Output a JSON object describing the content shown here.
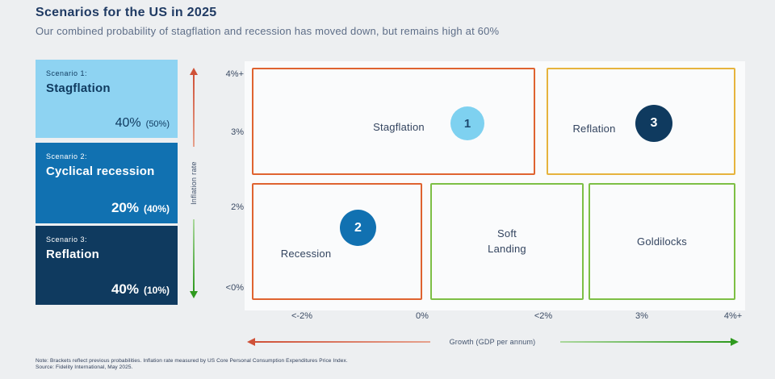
{
  "header": {
    "title": "Scenarios for the US in 2025",
    "subtitle": "Our combined probability of stagflation and recession has moved down, but remains high at 60%"
  },
  "scenarios": [
    {
      "label": "Scenario 1:",
      "name": "Stagflation",
      "probability": "40%",
      "previous": "(50%)",
      "bg": "#8ed3f2"
    },
    {
      "label": "Scenario 2:",
      "name": "Cyclical recession",
      "probability": "20%",
      "previous": "(40%)",
      "bg": "#1171b1"
    },
    {
      "label": "Scenario 3:",
      "name": "Reflation",
      "probability": "40%",
      "previous": "(10%)",
      "bg": "#0f3a5f"
    }
  ],
  "chart_data": {
    "type": "quadrant-map",
    "title": "Scenarios for the US in 2025",
    "x_axis": {
      "label": "Growth (GDP per annum)",
      "ticks": [
        "<-2%",
        "0%",
        "<2%",
        "3%",
        "4%+"
      ]
    },
    "y_axis": {
      "label": "Inflation rate",
      "ticks": [
        "4%+",
        "3%",
        "2%",
        "<0%"
      ]
    },
    "regions": [
      {
        "label": "Stagflation",
        "marker": "1",
        "inflation": "high (2% to 4%+)",
        "growth": "low (<-2% to <2%)",
        "border_color": "#df6330",
        "marker_color": "#7ed1f0"
      },
      {
        "label": "Reflation",
        "marker": "3",
        "inflation": "high (2% to 4%+)",
        "growth": "high (3% to 4%+)",
        "border_color": "#e6b33d",
        "marker_color": "#0f3a5f"
      },
      {
        "label": "Recession",
        "marker": "2",
        "inflation": "low (<0% to 2%)",
        "growth": "negative (<-2% to 0%)",
        "border_color": "#df6330",
        "marker_color": "#1171b1"
      },
      {
        "label": "Soft Landing",
        "marker": null,
        "inflation": "low (<0% to 2%)",
        "growth": "moderate (0% to <2%)",
        "border_color": "#7dbf45",
        "marker_color": null
      },
      {
        "label": "Goldilocks",
        "marker": null,
        "inflation": "low (<0% to 2%)",
        "growth": "high (<2% to 4%+)",
        "border_color": "#7dbf45",
        "marker_color": null
      }
    ],
    "legend_position": "left",
    "grid": false
  },
  "colors": {
    "accent_light_blue": "#8ed3f2",
    "accent_mid_blue": "#1171b1",
    "accent_navy": "#0f3a5f",
    "border_orange": "#df6330",
    "border_yellow": "#e6b33d",
    "border_green": "#7dbf45",
    "arrow_red": "#cf5138",
    "arrow_green": "#2f9a1f"
  },
  "footnotes": {
    "note": "Note: Brackets reflect previous probabilities. Inflation rate measured by US Core Personal Consumption Expenditures Price Index.",
    "source": "Source: Fidelity International, May 2025."
  }
}
